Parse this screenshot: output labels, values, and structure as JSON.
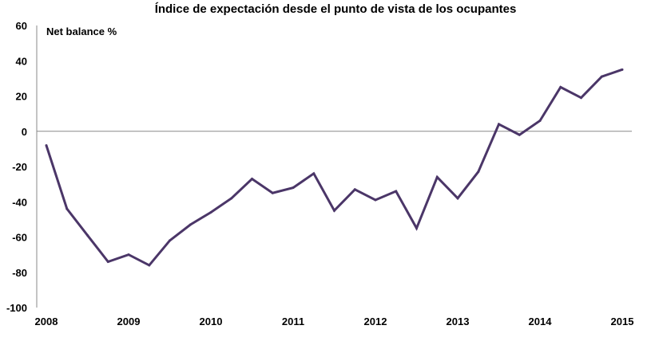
{
  "chart_data": {
    "type": "line",
    "title": "Índice de expectación desde el punto de vista de los ocupantes",
    "ylabel": "Net balance %",
    "xlabel": "",
    "ylim": [
      -100,
      60
    ],
    "yticks": [
      60,
      40,
      20,
      0,
      -20,
      -40,
      -60,
      -80,
      -100
    ],
    "xlim": [
      2008,
      2015
    ],
    "xticks": [
      "2008",
      "2009",
      "2010",
      "2011",
      "2012",
      "2013",
      "2014",
      "2015"
    ],
    "grid": false,
    "zero_line": true,
    "line_color": "#4b3668",
    "series": [
      {
        "x": [
          2008.0,
          2008.25,
          2008.5,
          2008.75,
          2009.0,
          2009.25,
          2009.5,
          2009.75,
          2010.0,
          2010.25,
          2010.5,
          2010.75,
          2011.0,
          2011.25,
          2011.5,
          2011.75,
          2012.0,
          2012.25,
          2012.5,
          2012.75,
          2013.0,
          2013.25,
          2013.5,
          2013.75,
          2014.0,
          2014.25,
          2014.5,
          2014.75,
          2015.0
        ],
        "values": [
          -8,
          -44,
          -59,
          -74,
          -70,
          -76,
          -62,
          -53,
          -46,
          -38,
          -27,
          -35,
          -32,
          -24,
          -45,
          -33,
          -39,
          -34,
          -55,
          -26,
          -38,
          -23,
          4,
          -2,
          6,
          25,
          19,
          31,
          35
        ]
      }
    ]
  }
}
